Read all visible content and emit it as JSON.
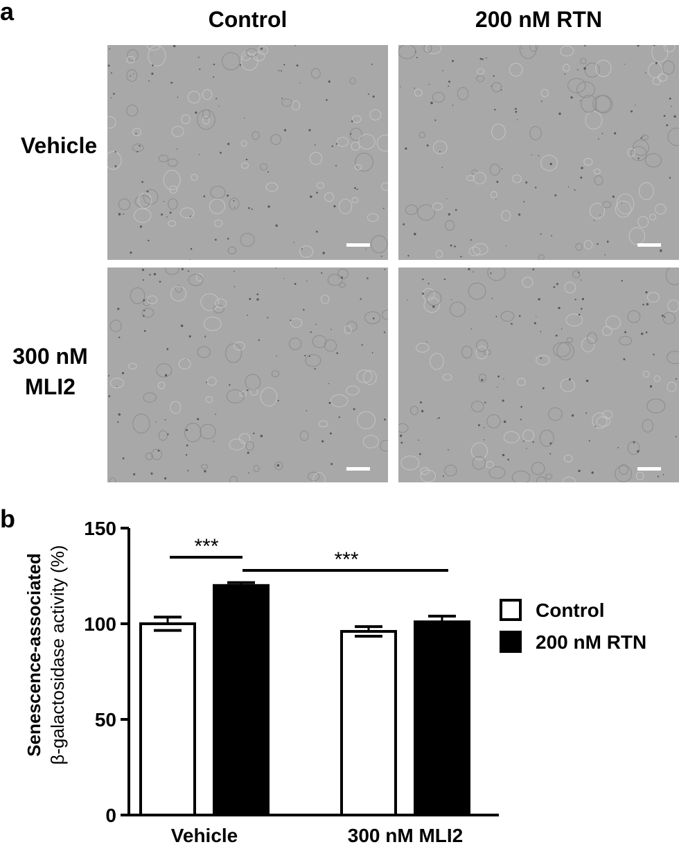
{
  "panel_a": {
    "letter": "a",
    "columns": [
      "Control",
      "200 nM RTN"
    ],
    "rows": [
      {
        "line1": "Vehicle",
        "line2": ""
      },
      {
        "line1": "300 nM",
        "line2": "MLI2"
      }
    ]
  },
  "panel_b": {
    "letter": "b"
  },
  "chart_data": {
    "type": "bar",
    "categories": [
      "Vehicle",
      "300 nM MLI2"
    ],
    "series": [
      {
        "name": "Control",
        "values": [
          100,
          96
        ],
        "errors": [
          3.5,
          2.5
        ],
        "fill": "#ffffff"
      },
      {
        "name": "200 nM RTN",
        "values": [
          120,
          101
        ],
        "errors": [
          1.5,
          3
        ],
        "fill": "#000000"
      }
    ],
    "ylabel_line1": "Senescence-associated",
    "ylabel_line2": "β-galactosidase activity (%)",
    "ylim": [
      0,
      150
    ],
    "yticks": [
      0,
      50,
      100,
      150
    ],
    "legend_position": "right",
    "grid": false,
    "significance": [
      {
        "label": "***",
        "between": "Vehicle Control vs Vehicle 200 nM RTN"
      },
      {
        "label": "***",
        "between": "Vehicle 200 nM RTN vs 300 nM MLI2 200 nM RTN"
      }
    ]
  }
}
